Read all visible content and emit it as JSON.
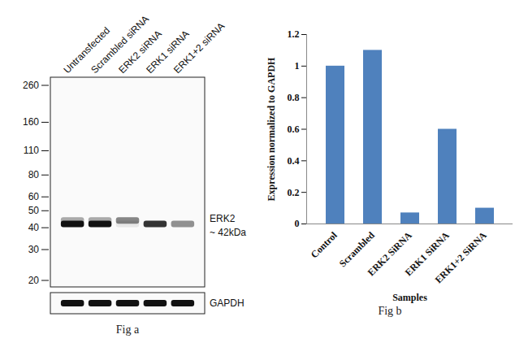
{
  "chart_data": {
    "type": "bar",
    "categories": [
      "Control",
      "Scrambled",
      "ERK2 SiRNA",
      "ERK1 SiRNA",
      "ERK1+2 SiRNA"
    ],
    "values": [
      1.0,
      1.1,
      0.07,
      0.6,
      0.1
    ],
    "color": "#4f81bd",
    "x_label": "Samples",
    "y_label": "Expression normalized to GAPDH",
    "ylim": [
      0,
      1.2
    ],
    "yticks": [
      0,
      0.2,
      0.4,
      0.6,
      0.8,
      1,
      1.2
    ],
    "grid": false,
    "caption": "Fig b"
  },
  "blot": {
    "lanes": [
      "Untransfected",
      "Scrambled siRNA",
      "ERK2 siRNA",
      "ERK1 siRNA",
      "ERK1+2 siRNA"
    ],
    "markers": [
      260,
      160,
      110,
      80,
      60,
      50,
      40,
      30,
      20
    ],
    "bands": [
      {
        "kda": 44,
        "intensity": [
          0.35,
          0.35,
          0.5,
          0,
          0
        ]
      },
      {
        "kda": 42,
        "intensity": [
          1,
          1,
          0.08,
          0.85,
          0.45
        ]
      }
    ],
    "band_label": "ERK2",
    "band_size": "~ 42kDa",
    "loading_label": "GAPDH",
    "loading_band": [
      1,
      1,
      1,
      1,
      1
    ],
    "caption": "Fig a"
  }
}
